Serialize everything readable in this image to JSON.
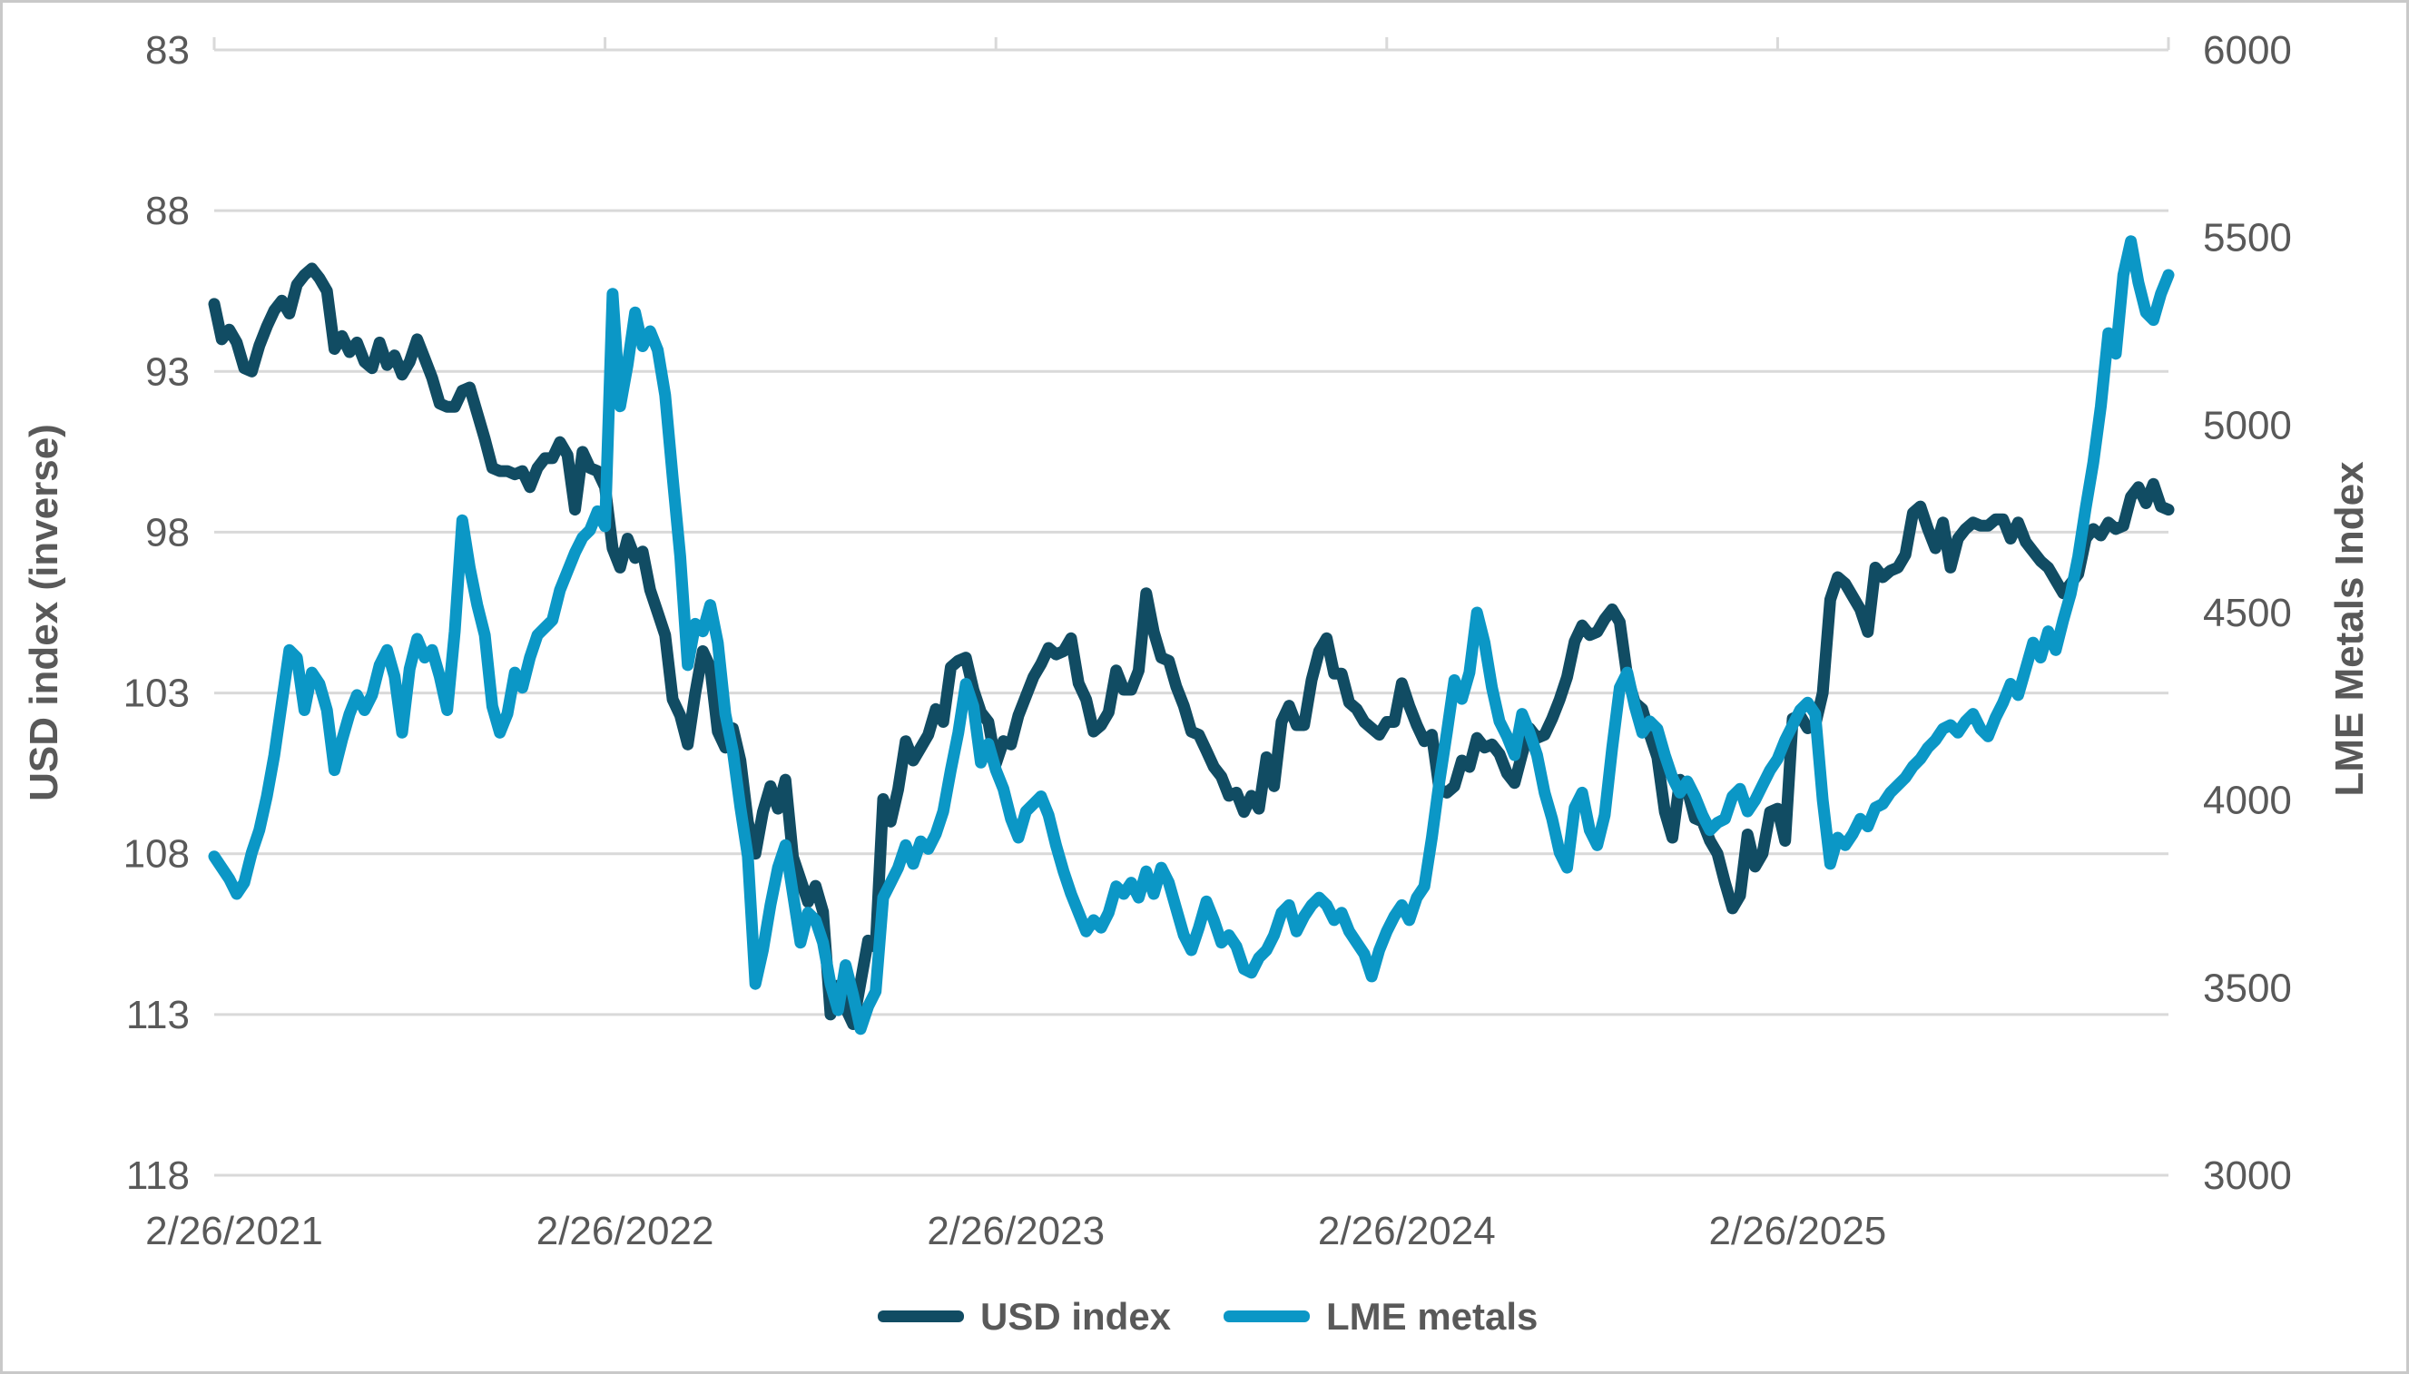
{
  "chart_data": {
    "type": "line",
    "title": "",
    "frequency": "weekly",
    "x_axis": {
      "labels": [
        "2/26/2021",
        "2/26/2022",
        "2/26/2023",
        "2/26/2024",
        "2/26/2025"
      ],
      "label_week_indices": [
        0,
        52,
        104,
        156,
        208
      ],
      "tick_week_indices": [
        0,
        52,
        104,
        156,
        208,
        260
      ]
    },
    "left_axis": {
      "title": "USD index (inverse)",
      "ticks": [
        83,
        88,
        93,
        98,
        103,
        108,
        113,
        118
      ],
      "min": 83,
      "max": 118,
      "inverted": true
    },
    "right_axis": {
      "title": "LME Metals Index",
      "ticks": [
        6000,
        5500,
        5000,
        4500,
        4000,
        3500,
        3000
      ],
      "min": 3000,
      "max": 6000
    },
    "grid": {
      "color": "#d9d9d9",
      "width": 3
    },
    "series": [
      {
        "name": "USD index",
        "axis": "left",
        "color": "#114c63",
        "stroke_width": 13,
        "values": [
          90.9,
          92.0,
          91.7,
          92.1,
          92.9,
          93.0,
          92.2,
          91.6,
          91.1,
          90.8,
          91.2,
          90.3,
          90.0,
          89.8,
          90.1,
          90.5,
          92.3,
          91.9,
          92.4,
          92.1,
          92.7,
          92.9,
          92.1,
          92.8,
          92.5,
          93.1,
          92.7,
          92.0,
          92.6,
          93.2,
          94.0,
          94.1,
          94.1,
          93.6,
          93.5,
          94.3,
          95.1,
          96.0,
          96.1,
          96.1,
          96.2,
          96.1,
          96.6,
          96.0,
          95.7,
          95.7,
          95.2,
          95.6,
          97.3,
          95.5,
          96.0,
          96.1,
          96.6,
          98.5,
          99.1,
          98.2,
          98.8,
          98.6,
          99.8,
          100.5,
          101.2,
          103.2,
          103.7,
          104.6,
          103.0,
          101.7,
          102.2,
          104.2,
          104.7,
          104.1,
          105.1,
          107.0,
          108.0,
          106.7,
          105.9,
          106.6,
          105.7,
          108.1,
          108.8,
          109.5,
          109.0,
          109.8,
          113.0,
          112.1,
          112.8,
          113.3,
          112.0,
          110.7,
          110.9,
          106.3,
          107.0,
          106.0,
          104.5,
          105.1,
          104.7,
          104.3,
          103.5,
          103.9,
          102.2,
          102.0,
          101.9,
          102.9,
          103.6,
          103.9,
          105.2,
          104.5,
          104.6,
          103.7,
          103.1,
          102.5,
          102.1,
          101.6,
          101.8,
          101.7,
          101.3,
          102.7,
          103.2,
          104.2,
          104.0,
          103.6,
          102.3,
          102.9,
          102.9,
          102.3,
          99.9,
          101.1,
          101.9,
          102.0,
          102.8,
          103.4,
          104.2,
          104.3,
          104.8,
          105.3,
          105.6,
          106.2,
          106.1,
          106.7,
          106.2,
          106.6,
          105.0,
          105.9,
          103.9,
          103.4,
          104.0,
          104.0,
          102.6,
          101.7,
          101.3,
          102.4,
          102.4,
          103.3,
          103.5,
          103.9,
          104.1,
          104.3,
          103.9,
          103.9,
          102.7,
          103.4,
          104.0,
          104.5,
          104.3,
          106.0,
          106.1,
          105.9,
          105.1,
          105.3,
          104.4,
          104.7,
          104.6,
          104.9,
          105.5,
          105.8,
          104.9,
          104.1,
          104.4,
          104.3,
          103.8,
          103.2,
          102.5,
          101.4,
          100.9,
          101.2,
          101.1,
          100.7,
          100.4,
          100.8,
          102.5,
          103.3,
          103.5,
          104.3,
          105.0,
          106.7,
          107.5,
          105.7,
          106.0,
          106.9,
          107.0,
          107.6,
          108.0,
          108.9,
          109.7,
          109.3,
          107.4,
          108.4,
          108.0,
          106.7,
          106.6,
          107.6,
          103.8,
          103.7,
          104.1,
          104.0,
          103.0,
          100.1,
          99.4,
          99.6,
          100.0,
          100.4,
          101.1,
          99.1,
          99.4,
          99.2,
          99.1,
          98.7,
          97.4,
          97.2,
          97.9,
          98.5,
          97.7,
          99.1,
          98.2,
          97.9,
          97.7,
          97.8,
          97.8,
          97.6,
          97.6,
          98.2,
          97.7,
          98.3,
          98.6,
          98.9,
          99.1,
          99.5,
          99.9,
          99.6,
          99.3,
          98.2,
          97.9,
          98.1,
          97.7,
          97.9,
          97.8,
          96.9,
          96.6,
          97.1,
          96.5,
          97.2,
          97.3
        ]
      },
      {
        "name": "LME metals",
        "axis": "right",
        "color": "#0b97c6",
        "stroke_width": 13,
        "values": [
          3850,
          3820,
          3790,
          3750,
          3780,
          3860,
          3920,
          4010,
          4120,
          4260,
          4400,
          4380,
          4240,
          4340,
          4310,
          4240,
          4080,
          4160,
          4230,
          4280,
          4240,
          4280,
          4360,
          4400,
          4330,
          4180,
          4350,
          4430,
          4380,
          4400,
          4330,
          4240,
          4450,
          4746,
          4620,
          4520,
          4440,
          4250,
          4180,
          4230,
          4340,
          4300,
          4380,
          4440,
          4460,
          4480,
          4560,
          4610,
          4660,
          4700,
          4720,
          4770,
          4730,
          5350,
          5050,
          5160,
          5300,
          5210,
          5250,
          5200,
          5080,
          4860,
          4650,
          4360,
          4470,
          4450,
          4520,
          4420,
          4230,
          4130,
          3980,
          3850,
          3510,
          3600,
          3720,
          3820,
          3880,
          3750,
          3620,
          3700,
          3680,
          3620,
          3510,
          3440,
          3560,
          3480,
          3390,
          3450,
          3490,
          3740,
          3780,
          3820,
          3880,
          3830,
          3890,
          3870,
          3910,
          3970,
          4080,
          4180,
          4310,
          4250,
          4100,
          4150,
          4080,
          4030,
          3950,
          3900,
          3970,
          3990,
          4010,
          3960,
          3880,
          3810,
          3750,
          3700,
          3650,
          3680,
          3660,
          3700,
          3770,
          3750,
          3780,
          3740,
          3810,
          3750,
          3820,
          3780,
          3710,
          3640,
          3600,
          3660,
          3730,
          3680,
          3620,
          3640,
          3610,
          3550,
          3540,
          3580,
          3600,
          3640,
          3700,
          3720,
          3650,
          3690,
          3720,
          3740,
          3720,
          3680,
          3700,
          3650,
          3620,
          3590,
          3530,
          3600,
          3650,
          3690,
          3720,
          3680,
          3740,
          3770,
          3900,
          4050,
          4180,
          4320,
          4270,
          4340,
          4500,
          4420,
          4300,
          4210,
          4170,
          4120,
          4230,
          4180,
          4120,
          4020,
          3950,
          3860,
          3820,
          3980,
          4020,
          3920,
          3880,
          3960,
          4140,
          4300,
          4340,
          4250,
          4180,
          4210,
          4190,
          4120,
          4060,
          4020,
          4050,
          4010,
          3960,
          3920,
          3940,
          3950,
          4010,
          4030,
          3970,
          4000,
          4040,
          4080,
          4110,
          4160,
          4200,
          4240,
          4260,
          4230,
          4000,
          3830,
          3900,
          3880,
          3910,
          3950,
          3930,
          3980,
          3990,
          4020,
          4040,
          4060,
          4090,
          4110,
          4140,
          4160,
          4190,
          4200,
          4180,
          4210,
          4230,
          4190,
          4170,
          4220,
          4260,
          4310,
          4280,
          4350,
          4420,
          4380,
          4450,
          4400,
          4480,
          4550,
          4650,
          4780,
          4900,
          5050,
          5245,
          5190,
          5400,
          5490,
          5380,
          5300,
          5280,
          5350,
          5400
        ]
      }
    ]
  },
  "legend": {
    "items": [
      {
        "label": "USD index",
        "color": "#114c63"
      },
      {
        "label": "LME metals",
        "color": "#0b97c6"
      }
    ]
  },
  "colors": {
    "text": "#595959",
    "gridline": "#d9d9d9",
    "background": "#ffffff",
    "frame": "#c9c9c9"
  }
}
